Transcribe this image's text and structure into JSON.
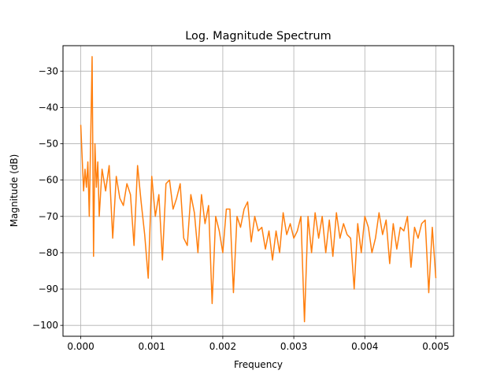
{
  "chart_data": {
    "type": "line",
    "title": "Log. Magnitude Spectrum",
    "xlabel": "Frequency",
    "ylabel": "Magnitude (dB)",
    "xlim": [
      -0.00025,
      0.00525
    ],
    "ylim": [
      -103,
      -23
    ],
    "grid": true,
    "xticks": [
      0.0,
      0.001,
      0.002,
      0.003,
      0.004,
      0.005
    ],
    "xtick_labels": [
      "0.000",
      "0.001",
      "0.002",
      "0.003",
      "0.004",
      "0.005"
    ],
    "yticks": [
      -30,
      -40,
      -50,
      -60,
      -70,
      -80,
      -90,
      -100
    ],
    "ytick_labels": [
      "−30",
      "−40",
      "−50",
      "−60",
      "−70",
      "−80",
      "−90",
      "−100"
    ],
    "series": [
      {
        "color": "#ff7f0e",
        "x": [
          0.0,
          2e-05,
          4e-05,
          6e-05,
          8e-05,
          0.0001,
          0.00012,
          0.00014,
          0.00016,
          0.00018,
          0.0002,
          0.00022,
          0.00024,
          0.00026,
          0.0003,
          0.00035,
          0.0004,
          0.00045,
          0.0005,
          0.00055,
          0.0006,
          0.00065,
          0.0007,
          0.00075,
          0.0008,
          0.00085,
          0.0009,
          0.00095,
          0.001,
          0.00105,
          0.0011,
          0.00115,
          0.0012,
          0.00125,
          0.0013,
          0.00135,
          0.0014,
          0.00145,
          0.0015,
          0.00155,
          0.0016,
          0.00165,
          0.0017,
          0.00175,
          0.0018,
          0.00185,
          0.0019,
          0.00195,
          0.002,
          0.00205,
          0.0021,
          0.00215,
          0.0022,
          0.00225,
          0.0023,
          0.00235,
          0.0024,
          0.00245,
          0.0025,
          0.00255,
          0.0026,
          0.00265,
          0.0027,
          0.00275,
          0.0028,
          0.00285,
          0.0029,
          0.00295,
          0.003,
          0.00305,
          0.0031,
          0.00315,
          0.0032,
          0.00325,
          0.0033,
          0.00335,
          0.0034,
          0.00345,
          0.0035,
          0.00355,
          0.0036,
          0.00365,
          0.0037,
          0.00375,
          0.0038,
          0.00385,
          0.0039,
          0.00395,
          0.004,
          0.00405,
          0.0041,
          0.00415,
          0.0042,
          0.00425,
          0.0043,
          0.00435,
          0.0044,
          0.00445,
          0.0045,
          0.00455,
          0.0046,
          0.00465,
          0.0047,
          0.00475,
          0.0048,
          0.00485,
          0.0049,
          0.00495,
          0.005
        ],
        "y": [
          -44.8,
          -54,
          -63,
          -57,
          -62,
          -55,
          -70,
          -48.5,
          -26,
          -81,
          -50,
          -62,
          -55,
          -70,
          -57,
          -63,
          -56,
          -76,
          -59,
          -65,
          -67,
          -61,
          -64,
          -78,
          -56,
          -66,
          -75,
          -87,
          -59,
          -70,
          -64,
          -82,
          -61,
          -60,
          -68,
          -65,
          -61,
          -76,
          -78,
          -64,
          -69,
          -80,
          -64,
          -72,
          -67,
          -94,
          -70,
          -74,
          -80,
          -68,
          -68,
          -91,
          -70,
          -73,
          -68,
          -66,
          -77,
          -70,
          -74,
          -73,
          -79,
          -74,
          -82,
          -74,
          -80,
          -69,
          -75,
          -72,
          -76,
          -74,
          -70,
          -99,
          -70,
          -80,
          -69,
          -76,
          -70,
          -80,
          -71,
          -81,
          -69,
          -76,
          -72,
          -75,
          -76,
          -90,
          -72,
          -80,
          -70,
          -73,
          -80,
          -76,
          -69,
          -75,
          -71,
          -83,
          -72,
          -79,
          -73,
          -74,
          -70,
          -84,
          -73,
          -76,
          -72,
          -71,
          -91,
          -73,
          -87
        ]
      }
    ]
  }
}
